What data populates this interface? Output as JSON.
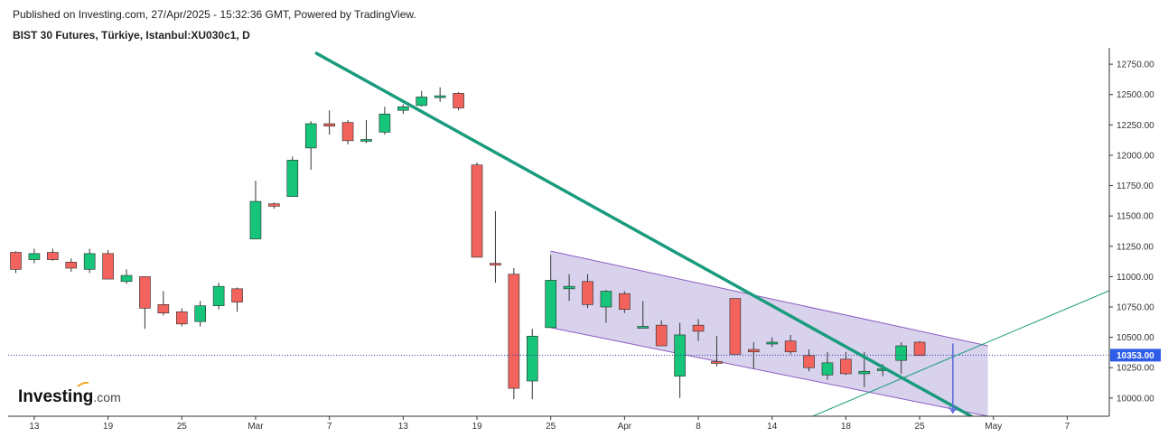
{
  "header": {
    "published": "Published on Investing.com, 27/Apr/2025 - 15:32:36 GMT, Powered by TradingView.",
    "instrument": "BIST 30 Futures, Türkiye, Istanbul:XU030c1, D"
  },
  "logo": {
    "brand": "Investing",
    "suffix": ".com"
  },
  "colors": {
    "up": "#16c47a",
    "down": "#f2635d",
    "trendline": "#1a9b7d",
    "channel_fill": "#d6d0ec",
    "channel_stroke": "#8a5cc0",
    "price_label_bg": "#2f5ce6",
    "dotted_price": "#2a3c9e",
    "arrow": "#5a6be0"
  },
  "chart_data": {
    "type": "candlestick",
    "title": "BIST 30 Futures, Türkiye, Istanbul:XU030c1, D",
    "y_axis": {
      "position": "right",
      "ylim": [
        9850,
        12870
      ],
      "ticks": [
        10000,
        10250,
        10500,
        10750,
        11000,
        11250,
        11500,
        11750,
        12000,
        12250,
        12500,
        12750
      ],
      "tick_labels": [
        "10000.00",
        "10250.00",
        "10500.00",
        "10750.00",
        "11000.00",
        "11250.00",
        "11500.00",
        "11750.00",
        "12000.00",
        "12250.00",
        "12500.00",
        "12750.00"
      ]
    },
    "x_axis": {
      "tick_labels": [
        "13",
        "19",
        "25",
        "Mar",
        "7",
        "13",
        "19",
        "25",
        "Apr",
        "8",
        "14",
        "18",
        "25",
        "May",
        "7"
      ],
      "tick_bar_index": [
        1,
        5,
        9,
        13,
        17,
        21,
        25,
        29,
        33,
        37,
        41,
        45,
        49,
        53,
        57
      ]
    },
    "current_price": 10353.0,
    "current_price_label": "10353.00",
    "candles": [
      [
        11200,
        11210,
        11030,
        11060
      ],
      [
        11140,
        11230,
        11110,
        11190
      ],
      [
        11200,
        11230,
        11130,
        11140
      ],
      [
        11120,
        11150,
        11040,
        11070
      ],
      [
        11060,
        11230,
        11030,
        11190
      ],
      [
        11190,
        11220,
        10980,
        10980
      ],
      [
        10960,
        11060,
        10940,
        11010
      ],
      [
        11000,
        11000,
        10570,
        10740
      ],
      [
        10770,
        10880,
        10680,
        10700
      ],
      [
        10710,
        10740,
        10590,
        10610
      ],
      [
        10630,
        10800,
        10590,
        10760
      ],
      [
        10760,
        10950,
        10730,
        10920
      ],
      [
        10900,
        10910,
        10710,
        10790
      ],
      [
        11310,
        11790,
        11310,
        11620
      ],
      [
        11600,
        11610,
        11560,
        11580
      ],
      [
        11660,
        11990,
        11660,
        11960
      ],
      [
        12060,
        12280,
        11880,
        12260
      ],
      [
        12260,
        12370,
        12170,
        12240
      ],
      [
        12270,
        12290,
        12090,
        12120
      ],
      [
        12130,
        12290,
        12100,
        12130
      ],
      [
        12190,
        12400,
        12170,
        12340
      ],
      [
        12370,
        12420,
        12340,
        12400
      ],
      [
        12410,
        12530,
        12400,
        12480
      ],
      [
        12490,
        12560,
        12440,
        12490
      ],
      [
        12510,
        12520,
        12370,
        12390
      ],
      [
        11920,
        11940,
        11160,
        11160
      ],
      [
        11110,
        11540,
        10950,
        11100
      ],
      [
        11020,
        11070,
        9990,
        10080
      ],
      [
        10140,
        10570,
        9990,
        10510
      ],
      [
        10580,
        11180,
        10580,
        10970
      ],
      [
        10900,
        11020,
        10800,
        10920
      ],
      [
        10960,
        11020,
        10740,
        10770
      ],
      [
        10750,
        10890,
        10620,
        10880
      ],
      [
        10860,
        10880,
        10700,
        10730
      ],
      [
        10590,
        10800,
        10590,
        10590
      ],
      [
        10600,
        10640,
        10440,
        10430
      ],
      [
        10180,
        10620,
        10000,
        10520
      ],
      [
        10600,
        10650,
        10470,
        10550
      ],
      [
        10300,
        10510,
        10260,
        10290
      ],
      [
        10820,
        10820,
        10360,
        10360
      ],
      [
        10400,
        10460,
        10240,
        10380
      ],
      [
        10450,
        10500,
        10420,
        10460
      ],
      [
        10470,
        10520,
        10360,
        10380
      ],
      [
        10350,
        10400,
        10220,
        10250
      ],
      [
        10190,
        10380,
        10150,
        10290
      ],
      [
        10320,
        10380,
        10190,
        10200
      ],
      [
        10200,
        10380,
        10090,
        10220
      ],
      [
        10240,
        10280,
        10180,
        10240
      ],
      [
        10310,
        10460,
        10200,
        10430
      ],
      [
        10460,
        10470,
        10350,
        10350
      ]
    ],
    "trendline": {
      "from": {
        "bar": 16.3,
        "price": 12840
      },
      "to": {
        "bar": 51.8,
        "price": 9850
      }
    },
    "support_line": {
      "from": {
        "bar": 43.2,
        "price": 9850
      },
      "to": {
        "bar": 60.3,
        "price": 10950
      }
    },
    "channel": {
      "upper": [
        {
          "bar": 29.0,
          "price": 11210
        },
        {
          "bar": 52.7,
          "price": 10430
        }
      ],
      "lower": [
        {
          "bar": 29.0,
          "price": 10580
        },
        {
          "bar": 52.7,
          "price": 9850
        }
      ]
    },
    "arrow": {
      "bar": 50.8,
      "from_price": 10450,
      "to_price": 9880
    }
  }
}
